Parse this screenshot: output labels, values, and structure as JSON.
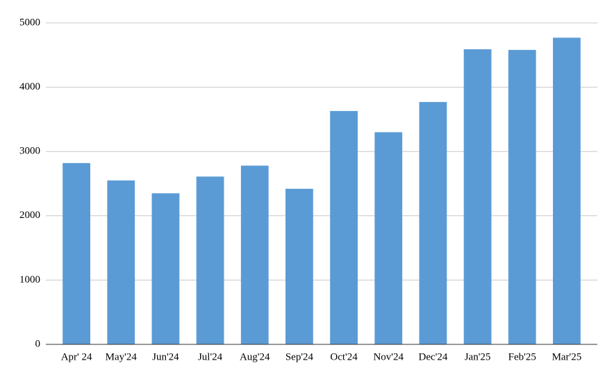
{
  "chart_data": {
    "type": "bar",
    "categories": [
      "Apr' 24",
      "May'24",
      "Jun'24",
      "Jul'24",
      "Aug'24",
      "Sep'24",
      "Oct'24",
      "Nov'24",
      "Dec'24",
      "Jan'25",
      "Feb'25",
      "Mar'25"
    ],
    "values": [
      2820,
      2550,
      2350,
      2610,
      2780,
      2420,
      3630,
      3300,
      3770,
      4590,
      4580,
      4770
    ],
    "color": "#5b9bd5",
    "ylim": [
      0,
      5000
    ],
    "yticks": [
      0,
      1000,
      2000,
      3000,
      4000,
      5000
    ],
    "grid": true
  }
}
